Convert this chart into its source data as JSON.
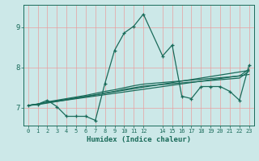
{
  "xlabel": "Humidex (Indice chaleur)",
  "bg_color": "#cce8e8",
  "line_color": "#1a6b5a",
  "grid_color": "#e8a0a0",
  "xlim": [
    -0.5,
    23.5
  ],
  "ylim": [
    6.55,
    9.55
  ],
  "x_ticks": [
    0,
    1,
    2,
    3,
    4,
    5,
    6,
    7,
    8,
    9,
    10,
    11,
    12,
    14,
    15,
    16,
    17,
    18,
    19,
    20,
    21,
    22,
    23
  ],
  "y_ticks": [
    7,
    8,
    9
  ],
  "zigzag_x": [
    0,
    1,
    2,
    3,
    4,
    5,
    6,
    7,
    8,
    9,
    10,
    11,
    12,
    14,
    15,
    16,
    17,
    18,
    19,
    20,
    21,
    22,
    23
  ],
  "zigzag_y": [
    7.05,
    7.08,
    7.18,
    7.02,
    6.78,
    6.78,
    6.78,
    6.68,
    7.6,
    8.42,
    8.85,
    9.02,
    9.32,
    8.28,
    8.55,
    7.28,
    7.22,
    7.52,
    7.52,
    7.52,
    7.4,
    7.18,
    8.05
  ],
  "line2_x": [
    0,
    23
  ],
  "line2_y": [
    7.05,
    7.92
  ],
  "line3_x": [
    0,
    23
  ],
  "line3_y": [
    7.05,
    7.82
  ],
  "line4_x": [
    0,
    1,
    2,
    3,
    4,
    5,
    6,
    7,
    8,
    9,
    10,
    11,
    12,
    14,
    15,
    16,
    17,
    18,
    19,
    20,
    21,
    22,
    23
  ],
  "line4_y": [
    7.05,
    7.08,
    7.14,
    7.18,
    7.22,
    7.26,
    7.3,
    7.35,
    7.4,
    7.44,
    7.49,
    7.54,
    7.58,
    7.62,
    7.64,
    7.66,
    7.68,
    7.7,
    7.72,
    7.74,
    7.76,
    7.78,
    7.95
  ],
  "line5_x": [
    0,
    1,
    2,
    3,
    4,
    5,
    6,
    7,
    8,
    9,
    10,
    11,
    12,
    14,
    15,
    16,
    17,
    18,
    19,
    20,
    21,
    22,
    23
  ],
  "line5_y": [
    7.05,
    7.07,
    7.11,
    7.15,
    7.19,
    7.23,
    7.27,
    7.31,
    7.36,
    7.4,
    7.45,
    7.49,
    7.53,
    7.57,
    7.59,
    7.61,
    7.63,
    7.65,
    7.67,
    7.69,
    7.71,
    7.73,
    7.9
  ]
}
